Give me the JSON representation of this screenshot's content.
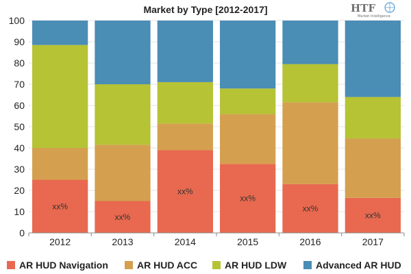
{
  "chart_data": {
    "type": "bar",
    "stacked": true,
    "title": "Market by Type [2012-2017]",
    "categories": [
      "2012",
      "2013",
      "2014",
      "2015",
      "2016",
      "2017"
    ],
    "ylim": [
      0,
      100
    ],
    "yticks": [
      0,
      10,
      20,
      30,
      40,
      50,
      60,
      70,
      80,
      90,
      100
    ],
    "legend_position": "bottom",
    "series": [
      {
        "name": "AR HUD Navigation",
        "color": "#e8694f",
        "values": [
          25,
          15,
          39,
          32.5,
          23,
          16.5
        ],
        "labels": [
          "xx%",
          "xx%",
          "xx%",
          "xx%",
          "xx%",
          "xx%"
        ]
      },
      {
        "name": "AR HUD ACC",
        "color": "#d4a04f",
        "values": [
          15,
          26.5,
          12.5,
          23.5,
          38.5,
          28
        ]
      },
      {
        "name": "AR HUD LDW",
        "color": "#b5c334",
        "values": [
          48.5,
          28.5,
          19.5,
          12,
          18,
          19.5
        ]
      },
      {
        "name": "Advanced AR HUD",
        "color": "#4a8db5",
        "values": [
          11.5,
          30,
          29,
          32,
          20.5,
          36
        ]
      }
    ]
  },
  "logo": {
    "main": "HTF",
    "sub": "Market Intelligence"
  }
}
